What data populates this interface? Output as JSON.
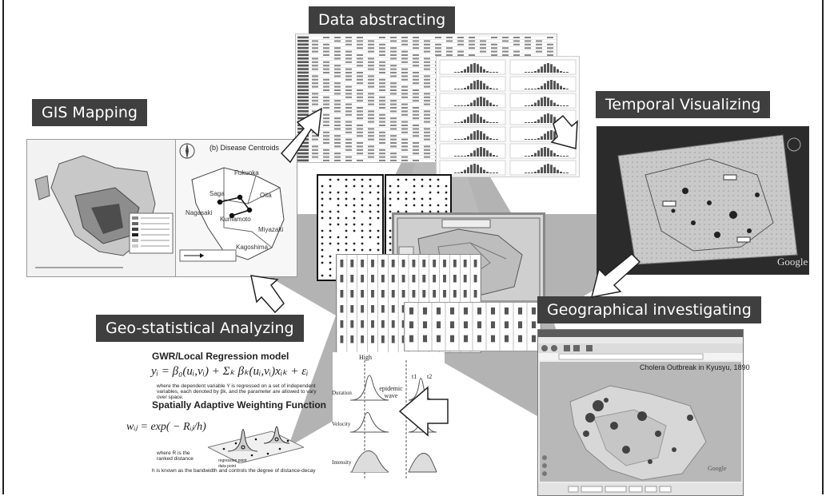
{
  "labels": {
    "data_abstracting": "Data abstracting",
    "gis_mapping": "GIS Mapping",
    "temporal_visualizing": "Temporal Visualizing",
    "geographical_investigating": "Geographical investigating",
    "geo_statistical": "Geo-statistical Analyzing"
  },
  "gis": {
    "map_b_title": "(b) Disease Centroids",
    "places": [
      "Fukuoka",
      "Saga",
      "Oita",
      "Nagasaki",
      "Kumamoto",
      "Miyazaki",
      "Kagoshima"
    ]
  },
  "gwr": {
    "title1": "GWR/Local Regression model",
    "formula1": "yᵢ = β₀(uᵢ,vᵢ) + Σₖ βₖ(uᵢ,vᵢ)xᵢₖ + εᵢ",
    "desc1": "where the dependent variable Y is regressed on a set of independent variables, each denoted by βk, and the parameter are allowed to vary over space.",
    "title2": "Spatially Adaptive Weighting Function",
    "formula2": "wᵢⱼ = exp( − Rᵢⱼ/h)",
    "desc2": "where R is the ranked distance",
    "legend1": "regression point",
    "legend2": "data point",
    "desc3": "h is known as the bandwidth and controls the degree of distance-decay"
  },
  "epidemic": {
    "high": "High",
    "duration": "Duration",
    "velocity": "Velocity",
    "intensity": "Intensity",
    "epidemic_wave": "epidemic wave",
    "t1": "t1",
    "t2": "t2"
  },
  "browser": {
    "title": "Cholera Outbreak in Kyusyu, 1890",
    "google": "Google"
  },
  "temporal": {
    "google": "Google"
  }
}
